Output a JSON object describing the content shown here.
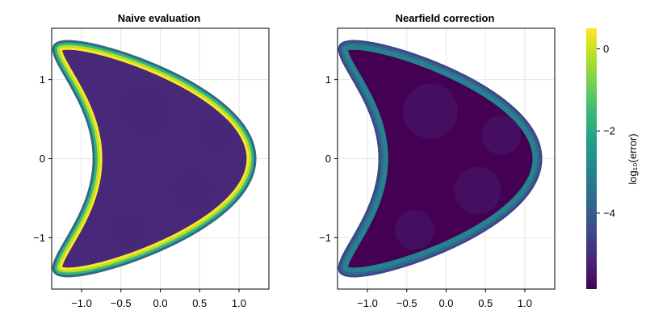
{
  "chart_data": [
    {
      "type": "heatmap",
      "title": "Naive evaluation",
      "xlim": [
        -1.38,
        1.38
      ],
      "ylim": [
        -1.65,
        1.65
      ],
      "xticks": [
        -1.0,
        -0.5,
        0.0,
        0.5,
        1.0
      ],
      "xtick_labels": [
        "−1.0",
        "−0.5",
        "0.0",
        "0.5",
        "1.0"
      ],
      "yticks": [
        -1,
        0,
        1
      ],
      "ytick_labels": [
        "−1",
        "0",
        "1"
      ],
      "grid": true,
      "shape": "kite / crescent region",
      "interior_log10_error": -5.4,
      "boundary_log10_error": 0.3
    },
    {
      "type": "heatmap",
      "title": "Nearfield correction",
      "xlim": [
        -1.38,
        1.38
      ],
      "ylim": [
        -1.65,
        1.65
      ],
      "xticks": [
        -1.0,
        -0.5,
        0.0,
        0.5,
        1.0
      ],
      "xtick_labels": [
        "−1.0",
        "−0.5",
        "0.0",
        "0.5",
        "1.0"
      ],
      "yticks": [
        -1,
        0,
        1
      ],
      "ytick_labels": [
        "−1",
        "0",
        "1"
      ],
      "grid": true,
      "shape": "kite / crescent region",
      "interior_log10_error": -5.5,
      "boundary_log10_error": -3.0
    }
  ],
  "colorbar": {
    "label": "log₁₀(error)",
    "range": [
      -5.85,
      0.5
    ],
    "ticks": [
      0,
      -2,
      -4
    ],
    "tick_labels": [
      "0",
      "−2",
      "−4"
    ],
    "colormap": "viridis",
    "colors": [
      "#440154",
      "#482878",
      "#3e4989",
      "#31688e",
      "#26828e",
      "#1f9e89",
      "#35b779",
      "#6ece58",
      "#b5de2b",
      "#fde725"
    ]
  }
}
